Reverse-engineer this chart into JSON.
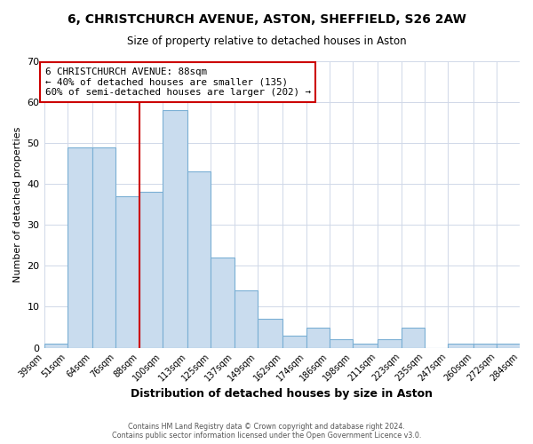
{
  "title_line1": "6, CHRISTCHURCH AVENUE, ASTON, SHEFFIELD, S26 2AW",
  "title_line2": "Size of property relative to detached houses in Aston",
  "xlabel": "Distribution of detached houses by size in Aston",
  "ylabel": "Number of detached properties",
  "bar_edges": [
    39,
    51,
    64,
    76,
    88,
    100,
    113,
    125,
    137,
    149,
    162,
    174,
    186,
    198,
    211,
    223,
    235,
    247,
    260,
    272,
    284
  ],
  "bar_heights": [
    1,
    49,
    49,
    37,
    38,
    58,
    43,
    22,
    14,
    7,
    3,
    5,
    2,
    1,
    2,
    5,
    0,
    1,
    1,
    1
  ],
  "bar_color": "#c9dcee",
  "bar_edge_color": "#7aafd4",
  "vline_x": 88,
  "vline_color": "#cc0000",
  "annotation_text": "6 CHRISTCHURCH AVENUE: 88sqm\n← 40% of detached houses are smaller (135)\n60% of semi-detached houses are larger (202) →",
  "annotation_box_color": "#ffffff",
  "annotation_box_edge_color": "#cc0000",
  "ylim": [
    0,
    70
  ],
  "yticks": [
    0,
    10,
    20,
    30,
    40,
    50,
    60,
    70
  ],
  "footer_text": "Contains HM Land Registry data © Crown copyright and database right 2024.\nContains public sector information licensed under the Open Government Licence v3.0.",
  "background_color": "#ffffff",
  "grid_color": "#d0d8e8"
}
